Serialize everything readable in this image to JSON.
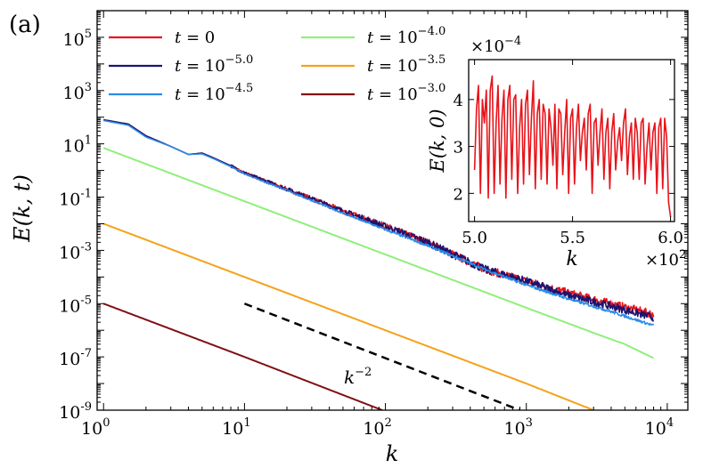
{
  "chart_data": [
    {
      "type": "line",
      "panel_label": "(a)",
      "xlabel": "k",
      "ylabel": "E(k, t)",
      "xscale": "log",
      "yscale": "log",
      "xlim": [
        0.9,
        14000
      ],
      "ylim": [
        1e-09,
        1000000.0
      ],
      "x_ticks": [
        {
          "base": "10",
          "exp": "0"
        },
        {
          "base": "10",
          "exp": "1"
        },
        {
          "base": "10",
          "exp": "2"
        },
        {
          "base": "10",
          "exp": "3"
        },
        {
          "base": "10",
          "exp": "4"
        }
      ],
      "y_ticks": [
        {
          "base": "10",
          "exp": "5"
        },
        {
          "base": "10",
          "exp": "3"
        },
        {
          "base": "10",
          "exp": "1"
        },
        {
          "base": "10",
          "exp": "-1"
        },
        {
          "base": "10",
          "exp": "-3"
        },
        {
          "base": "10",
          "exp": "-5"
        },
        {
          "base": "10",
          "exp": "-7"
        },
        {
          "base": "10",
          "exp": "-9"
        }
      ],
      "legend": [
        {
          "prefix": "t = ",
          "base": "0",
          "exp": "",
          "color": "#e8131a"
        },
        {
          "prefix": "t = ",
          "base": "10",
          "exp": "−5.0",
          "color": "#1c1470"
        },
        {
          "prefix": "t = ",
          "base": "10",
          "exp": "−4.5",
          "color": "#2b8ce6"
        },
        {
          "prefix": "t = ",
          "base": "10",
          "exp": "−4.0",
          "color": "#8ef07a"
        },
        {
          "prefix": "t = ",
          "base": "10",
          "exp": "−3.5",
          "color": "#f5a21a"
        },
        {
          "prefix": "t = ",
          "base": "10",
          "exp": "−3.0",
          "color": "#7f0f12"
        }
      ],
      "series": [
        {
          "name": "t = 0",
          "color": "#e8131a",
          "noise": 0.3,
          "points": [
            [
              1,
              80
            ],
            [
              1.5,
              55
            ],
            [
              2,
              20
            ],
            [
              3,
              8
            ],
            [
              4,
              4
            ],
            [
              5,
              4.5
            ],
            [
              6,
              3
            ],
            [
              8,
              1.5
            ],
            [
              10,
              0.8
            ],
            [
              20,
              0.2
            ],
            [
              50,
              0.03
            ],
            [
              100,
              0.008
            ],
            [
              200,
              0.002
            ],
            [
              500,
              0.0002
            ],
            [
              1000,
              7e-05
            ],
            [
              2000,
              2.5e-05
            ],
            [
              4000,
              1e-05
            ],
            [
              8000,
              4e-06
            ]
          ]
        },
        {
          "name": "t = 10^-5.0",
          "color": "#1c1470",
          "noise": 0.3,
          "points": [
            [
              1,
              80
            ],
            [
              1.5,
              55
            ],
            [
              2,
              20
            ],
            [
              3,
              8
            ],
            [
              4,
              4
            ],
            [
              5,
              4.5
            ],
            [
              6,
              3
            ],
            [
              8,
              1.5
            ],
            [
              10,
              0.8
            ],
            [
              20,
              0.2
            ],
            [
              50,
              0.03
            ],
            [
              100,
              0.008
            ],
            [
              200,
              0.002
            ],
            [
              500,
              0.0002
            ],
            [
              1000,
              7e-05
            ],
            [
              2000,
              2e-05
            ],
            [
              4000,
              8e-06
            ],
            [
              8000,
              3e-06
            ]
          ]
        },
        {
          "name": "t = 10^-4.5",
          "color": "#2b8ce6",
          "noise": 0.1,
          "points": [
            [
              1,
              75
            ],
            [
              1.5,
              50
            ],
            [
              2,
              18
            ],
            [
              3,
              8
            ],
            [
              4,
              4
            ],
            [
              5,
              4.2
            ],
            [
              6,
              2.8
            ],
            [
              8,
              1.4
            ],
            [
              10,
              0.75
            ],
            [
              20,
              0.18
            ],
            [
              50,
              0.025
            ],
            [
              100,
              0.006
            ],
            [
              200,
              0.0015
            ],
            [
              500,
              0.0002
            ],
            [
              1000,
              5e-05
            ],
            [
              2000,
              1.5e-05
            ],
            [
              4000,
              5e-06
            ],
            [
              8000,
              1.5e-06
            ]
          ]
        },
        {
          "name": "t = 10^-4.0",
          "color": "#8ef07a",
          "noise": 0,
          "points": [
            [
              1,
              7
            ],
            [
              10,
              0.07
            ],
            [
              100,
              0.0007
            ],
            [
              1000,
              7e-06
            ],
            [
              3000,
              8e-07
            ],
            [
              5000,
              3e-07
            ],
            [
              8000,
              9e-08
            ]
          ]
        },
        {
          "name": "t = 10^-3.5",
          "color": "#f5a21a",
          "noise": 0,
          "points": [
            [
              1,
              0.01
            ],
            [
              10,
              0.0001
            ],
            [
              100,
              1e-06
            ],
            [
              1000,
              1e-08
            ],
            [
              3000,
              1e-09
            ]
          ]
        },
        {
          "name": "t = 10^-3.0",
          "color": "#7f0f12",
          "noise": 0,
          "points": [
            [
              1,
              1e-05
            ],
            [
              10,
              1e-07
            ],
            [
              95,
              1e-09
            ]
          ]
        }
      ],
      "reference_line": {
        "label": "k",
        "exp": "−2",
        "points": [
          [
            10,
            1e-05
          ],
          [
            900,
            1e-09
          ]
        ]
      }
    },
    {
      "type": "line",
      "inset": true,
      "xlabel": "k",
      "ylabel": "E(k, 0)",
      "xlim": [
        4.97,
        6.02
      ],
      "ylim": [
        1.4,
        4.85
      ],
      "x_ticks": [
        "5.0",
        "5.5",
        "6.0"
      ],
      "y_ticks": [
        "2",
        "3",
        "4"
      ],
      "x_multiplier": {
        "base": "×10",
        "exp": "2"
      },
      "y_multiplier": {
        "base": "×10",
        "exp": "−4"
      },
      "series": [
        {
          "name": "t = 0",
          "color": "#e8131a",
          "x_start": 5.0,
          "x_step": 0.01,
          "values": [
            2.5,
            3.8,
            4.3,
            2.0,
            4.0,
            3.5,
            4.2,
            1.9,
            4.2,
            4.5,
            2.0,
            3.5,
            4.3,
            2.2,
            3.6,
            4.2,
            1.9,
            4.0,
            4.3,
            2.3,
            4.0,
            4.1,
            2.0,
            3.4,
            4.0,
            2.2,
            3.9,
            4.2,
            2.4,
            3.6,
            4.4,
            2.1,
            3.7,
            4.0,
            2.3,
            3.9,
            3.7,
            2.2,
            3.8,
            3.4,
            2.6,
            3.9,
            2.1,
            3.8,
            3.7,
            2.4,
            3.3,
            4.0,
            2.0,
            3.6,
            3.8,
            2.2,
            3.4,
            3.9,
            2.7,
            3.3,
            3.6,
            2.5,
            3.7,
            3.9,
            2.0,
            3.5,
            3.6,
            2.6,
            3.3,
            3.8,
            2.3,
            3.3,
            3.6,
            2.1,
            3.3,
            3.7,
            2.5,
            3.1,
            3.4,
            2.7,
            3.5,
            3.8,
            2.4,
            3.2,
            3.5,
            2.3,
            3.6,
            3.3,
            2.3,
            3.5,
            3.6,
            2.2,
            3.0,
            3.5,
            2.5,
            3.3,
            3.5,
            2.0,
            3.4,
            3.6,
            2.1,
            3.6,
            3.2,
            1.8,
            1.5
          ]
        }
      ]
    }
  ]
}
